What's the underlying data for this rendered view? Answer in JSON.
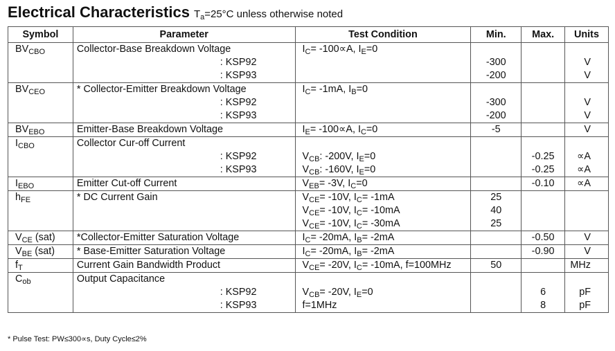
{
  "title": {
    "main": "Electrical Characteristics",
    "cond_prefix": "T",
    "cond_sub": "a",
    "cond_rest": "=25°C unless otherwise noted"
  },
  "headers": [
    "Symbol",
    "Parameter",
    "Test Condition",
    "Min.",
    "Max.",
    "Units"
  ],
  "rows": [
    {
      "symbol": [
        [
          "BV",
          ""
        ],
        [
          "CBO",
          "sub"
        ]
      ],
      "params": [
        {
          "text": "Collector-Base Breakdown Voltage",
          "sub": false
        },
        {
          "text": ": KSP92",
          "sub": true
        },
        {
          "text": ": KSP93",
          "sub": true
        }
      ],
      "cond": [
        [
          [
            "I",
            ""
          ],
          [
            "C",
            "sub"
          ],
          [
            "= -100∝A, I",
            ""
          ],
          [
            "E",
            "sub"
          ],
          [
            "=0",
            ""
          ]
        ],
        [],
        []
      ],
      "min": [
        "",
        "-300",
        "-200"
      ],
      "max": [
        "",
        "",
        ""
      ],
      "units": [
        "",
        "V",
        "V"
      ]
    },
    {
      "symbol": [
        [
          "BV",
          ""
        ],
        [
          "CEO",
          "sub"
        ]
      ],
      "params": [
        {
          "text": "* Collector-Emitter Breakdown Voltage",
          "sub": false
        },
        {
          "text": ": KSP92",
          "sub": true
        },
        {
          "text": ": KSP93",
          "sub": true
        }
      ],
      "cond": [
        [
          [
            "I",
            ""
          ],
          [
            "C",
            "sub"
          ],
          [
            "= -1mA, I",
            ""
          ],
          [
            "B",
            "sub"
          ],
          [
            "=0",
            ""
          ]
        ],
        [],
        []
      ],
      "min": [
        "",
        "-300",
        "-200"
      ],
      "max": [
        "",
        "",
        ""
      ],
      "units": [
        "",
        "V",
        "V"
      ]
    },
    {
      "symbol": [
        [
          "BV",
          ""
        ],
        [
          "EBO",
          "sub"
        ]
      ],
      "params": [
        {
          "text": "Emitter-Base Breakdown Voltage",
          "sub": false
        }
      ],
      "cond": [
        [
          [
            "I",
            ""
          ],
          [
            "E",
            "sub"
          ],
          [
            "= -100∝A, I",
            ""
          ],
          [
            "C",
            "sub"
          ],
          [
            "=0",
            ""
          ]
        ]
      ],
      "min": [
        "-5"
      ],
      "max": [
        ""
      ],
      "units": [
        "V"
      ]
    },
    {
      "symbol": [
        [
          "I",
          ""
        ],
        [
          "CBO",
          "sub"
        ]
      ],
      "params": [
        {
          "text": "Collector Cur-off Current",
          "sub": false
        },
        {
          "text": ": KSP92",
          "sub": true
        },
        {
          "text": ": KSP93",
          "sub": true
        }
      ],
      "cond": [
        [],
        [
          [
            "V",
            ""
          ],
          [
            "CB",
            "sub"
          ],
          [
            ": -200V, I",
            ""
          ],
          [
            "E",
            "sub"
          ],
          [
            "=0",
            ""
          ]
        ],
        [
          [
            "V",
            ""
          ],
          [
            "CB",
            "sub"
          ],
          [
            ": -160V, I",
            ""
          ],
          [
            "E",
            "sub"
          ],
          [
            "=0",
            ""
          ]
        ]
      ],
      "min": [
        "",
        "",
        ""
      ],
      "max": [
        "",
        "-0.25",
        "-0.25"
      ],
      "units": [
        "",
        "∝A",
        "∝A"
      ]
    },
    {
      "symbol": [
        [
          "I",
          ""
        ],
        [
          "EBO",
          "sub"
        ]
      ],
      "params": [
        {
          "text": "Emitter Cut-off Current",
          "sub": false
        }
      ],
      "cond": [
        [
          [
            "V",
            ""
          ],
          [
            "EB",
            "sub"
          ],
          [
            "= -3V, I",
            ""
          ],
          [
            "C",
            "sub"
          ],
          [
            "=0",
            ""
          ]
        ]
      ],
      "min": [
        ""
      ],
      "max": [
        "-0.10"
      ],
      "units": [
        "∝A"
      ]
    },
    {
      "symbol": [
        [
          "h",
          ""
        ],
        [
          "FE",
          "sub"
        ]
      ],
      "params": [
        {
          "text": "* DC Current Gain",
          "sub": false
        }
      ],
      "cond": [
        [
          [
            "V",
            ""
          ],
          [
            "CE",
            "sub"
          ],
          [
            "= -10V, I",
            ""
          ],
          [
            "C",
            "sub"
          ],
          [
            "= -1mA",
            ""
          ]
        ],
        [
          [
            "V",
            ""
          ],
          [
            "CE",
            "sub"
          ],
          [
            "= -10V, I",
            ""
          ],
          [
            "C",
            "sub"
          ],
          [
            "= -10mA",
            ""
          ]
        ],
        [
          [
            "V",
            ""
          ],
          [
            "CE",
            "sub"
          ],
          [
            "= -10V, I",
            ""
          ],
          [
            "C",
            "sub"
          ],
          [
            "= -30mA",
            ""
          ]
        ]
      ],
      "min": [
        "25",
        "40",
        "25"
      ],
      "max": [
        "",
        "",
        ""
      ],
      "units": [
        "",
        "",
        ""
      ]
    },
    {
      "symbol": [
        [
          "V",
          ""
        ],
        [
          "CE",
          "sub"
        ],
        [
          " (sat)",
          ""
        ]
      ],
      "params": [
        {
          "text": "*Collector-Emitter Saturation Voltage",
          "sub": false
        }
      ],
      "cond": [
        [
          [
            "I",
            ""
          ],
          [
            "C",
            "sub"
          ],
          [
            "= -20mA, I",
            ""
          ],
          [
            "B",
            "sub"
          ],
          [
            "= -2mA",
            ""
          ]
        ]
      ],
      "min": [
        ""
      ],
      "max": [
        "-0.50"
      ],
      "units": [
        "V"
      ]
    },
    {
      "symbol": [
        [
          "V",
          ""
        ],
        [
          "BE",
          "sub"
        ],
        [
          " (sat)",
          ""
        ]
      ],
      "params": [
        {
          "text": "* Base-Emitter Saturation Voltage",
          "sub": false
        }
      ],
      "cond": [
        [
          [
            "I",
            ""
          ],
          [
            "C",
            "sub"
          ],
          [
            "= -20mA, I",
            ""
          ],
          [
            "B",
            "sub"
          ],
          [
            "= -2mA",
            ""
          ]
        ]
      ],
      "min": [
        ""
      ],
      "max": [
        "-0.90"
      ],
      "units": [
        "V"
      ]
    },
    {
      "symbol": [
        [
          "f",
          ""
        ],
        [
          "T",
          "sub"
        ]
      ],
      "params": [
        {
          "text": "Current Gain Bandwidth Product",
          "sub": false
        }
      ],
      "cond": [
        [
          [
            "V",
            ""
          ],
          [
            "CE",
            "sub"
          ],
          [
            "= -20V, I",
            ""
          ],
          [
            "C",
            "sub"
          ],
          [
            "= -10mA, f=100MHz",
            ""
          ]
        ]
      ],
      "min": [
        "50"
      ],
      "max": [
        ""
      ],
      "units": [
        "MHz"
      ]
    },
    {
      "symbol": [
        [
          "C",
          ""
        ],
        [
          "ob",
          "sub"
        ]
      ],
      "params": [
        {
          "text": "Output Capacitance",
          "sub": false
        },
        {
          "text": ": KSP92",
          "sub": true
        },
        {
          "text": ": KSP93",
          "sub": true
        }
      ],
      "cond": [
        [],
        [
          [
            "V",
            ""
          ],
          [
            "CB",
            "sub"
          ],
          [
            "= -20V, I",
            ""
          ],
          [
            "E",
            "sub"
          ],
          [
            "=0",
            ""
          ]
        ],
        [
          [
            "f=1MHz",
            ""
          ]
        ]
      ],
      "min": [
        "",
        "",
        ""
      ],
      "max": [
        "",
        "6",
        "8"
      ],
      "units": [
        "",
        "pF",
        "pF"
      ]
    }
  ],
  "footnote": "* Pulse Test: PW≤300∝s, Duty Cycle≤2%"
}
